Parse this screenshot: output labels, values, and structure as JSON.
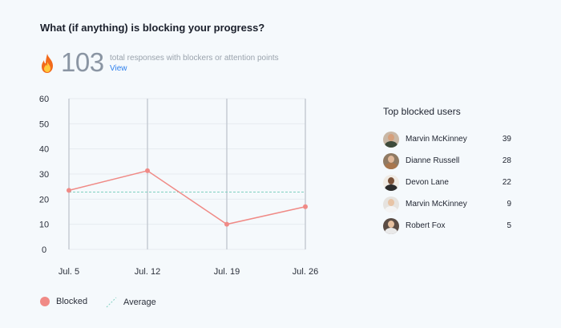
{
  "question": "What (if anything) is blocking your progress?",
  "summary": {
    "icon": "fire-icon",
    "total": "103",
    "description": "total responses with blockers or attention points",
    "view_link": "View"
  },
  "chart_data": {
    "type": "line",
    "categories": [
      "Jul. 5",
      "Jul. 12",
      "Jul. 19",
      "Jul. 26"
    ],
    "series": [
      {
        "name": "Blocked",
        "values": [
          23.5,
          31.3,
          10,
          17
        ],
        "color": "#f08a86"
      },
      {
        "name": "Average",
        "values": [
          22.8,
          22.8,
          22.8,
          22.8
        ],
        "color": "#7fd1c1",
        "style": "dashed"
      }
    ],
    "ylim": [
      0,
      60
    ],
    "yticks": [
      "0",
      "10",
      "20",
      "30",
      "40",
      "50",
      "60"
    ],
    "grid": true,
    "legend": "bottom-left"
  },
  "legend": {
    "blocked_label": "Blocked",
    "average_label": "Average"
  },
  "top_users": {
    "title": "Top blocked users",
    "items": [
      {
        "name": "Marvin McKinney",
        "count": "39"
      },
      {
        "name": "Dianne Russell",
        "count": "28"
      },
      {
        "name": "Devon Lane",
        "count": "22"
      },
      {
        "name": "Marvin McKinney",
        "count": "9"
      },
      {
        "name": "Robert Fox",
        "count": "5"
      }
    ]
  }
}
